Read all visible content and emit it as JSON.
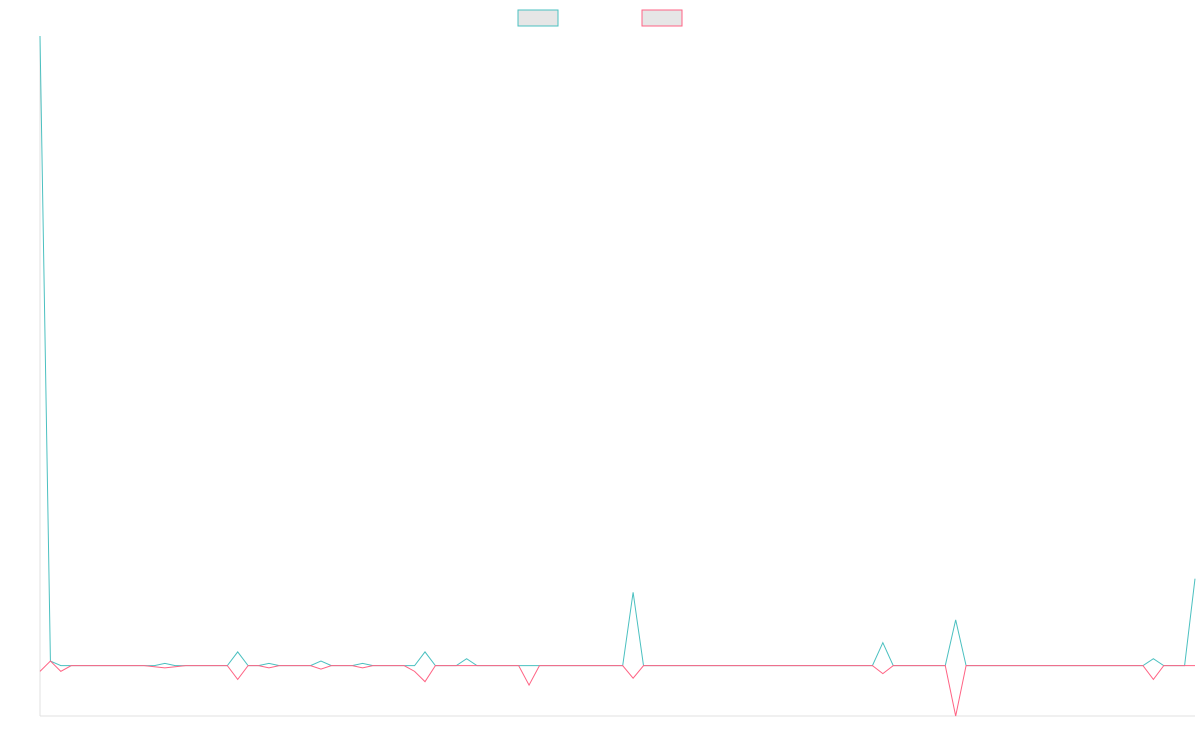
{
  "chart_data": {
    "type": "line",
    "title": "",
    "xlabel": "",
    "ylabel": "",
    "legend": {
      "placement": "top-center",
      "entries": [
        {
          "label": "",
          "stroke": "#4bc0c0",
          "fill": "#e6e6e6"
        },
        {
          "label": "",
          "stroke": "#ff6384",
          "fill": "#e6e6e6"
        }
      ]
    },
    "grid": false,
    "ylim": [
      -2.2,
      27.5
    ],
    "x_count": 112,
    "series": [
      {
        "color": "#4bc0c0",
        "values": [
          27.5,
          0.2,
          0.0,
          0.0,
          0.0,
          0.0,
          0.0,
          0.0,
          0.0,
          0.0,
          0.0,
          0.0,
          0.1,
          0.0,
          0.0,
          0.0,
          0.0,
          0.0,
          0.0,
          0.6,
          0.0,
          0.0,
          0.1,
          0.0,
          0.0,
          0.0,
          0.0,
          0.2,
          0.0,
          0.0,
          0.0,
          0.1,
          0.0,
          0.0,
          0.0,
          0.0,
          0.0,
          0.6,
          0.0,
          0.0,
          0.0,
          0.3,
          0.0,
          0.0,
          0.0,
          0.0,
          0.0,
          0.0,
          0.0,
          0.0,
          0.0,
          0.0,
          0.0,
          0.0,
          0.0,
          0.0,
          0.0,
          3.2,
          0.0,
          0.0,
          0.0,
          0.0,
          0.0,
          0.0,
          0.0,
          0.0,
          0.0,
          0.0,
          0.0,
          0.0,
          0.0,
          0.0,
          0.0,
          0.0,
          0.0,
          0.0,
          0.0,
          0.0,
          0.0,
          0.0,
          0.0,
          1.0,
          0.0,
          0.0,
          0.0,
          0.0,
          0.0,
          0.0,
          2.0,
          0.0,
          0.0,
          0.0,
          0.0,
          0.0,
          0.0,
          0.0,
          0.0,
          0.0,
          0.0,
          0.0,
          0.0,
          0.0,
          0.0,
          0.0,
          0.0,
          0.0,
          0.0,
          0.3,
          0.0,
          0.0,
          0.0,
          3.8
        ]
      },
      {
        "color": "#ff6384",
        "values": [
          -0.25,
          0.2,
          -0.25,
          0.0,
          0.0,
          0.0,
          0.0,
          0.0,
          0.0,
          0.0,
          0.0,
          -0.05,
          -0.1,
          -0.05,
          0.0,
          0.0,
          0.0,
          0.0,
          0.0,
          -0.6,
          0.0,
          0.0,
          -0.1,
          0.0,
          0.0,
          0.0,
          0.0,
          -0.15,
          0.0,
          0.0,
          0.0,
          -0.1,
          0.0,
          0.0,
          0.0,
          0.0,
          -0.25,
          -0.7,
          0.0,
          0.0,
          0.0,
          0.0,
          0.0,
          0.0,
          0.0,
          0.0,
          0.0,
          -0.85,
          0.0,
          0.0,
          0.0,
          0.0,
          0.0,
          0.0,
          0.0,
          0.0,
          0.0,
          -0.55,
          0.0,
          0.0,
          0.0,
          0.0,
          0.0,
          0.0,
          0.0,
          0.0,
          0.0,
          0.0,
          0.0,
          0.0,
          0.0,
          0.0,
          0.0,
          0.0,
          0.0,
          0.0,
          0.0,
          0.0,
          0.0,
          0.0,
          0.0,
          -0.35,
          0.0,
          0.0,
          0.0,
          0.0,
          0.0,
          0.0,
          -2.2,
          0.0,
          0.0,
          0.0,
          0.0,
          0.0,
          0.0,
          0.0,
          0.0,
          0.0,
          0.0,
          0.0,
          0.0,
          0.0,
          0.0,
          0.0,
          0.0,
          0.0,
          0.0,
          -0.6,
          0.0,
          0.0,
          0.0,
          0.0
        ]
      }
    ]
  }
}
